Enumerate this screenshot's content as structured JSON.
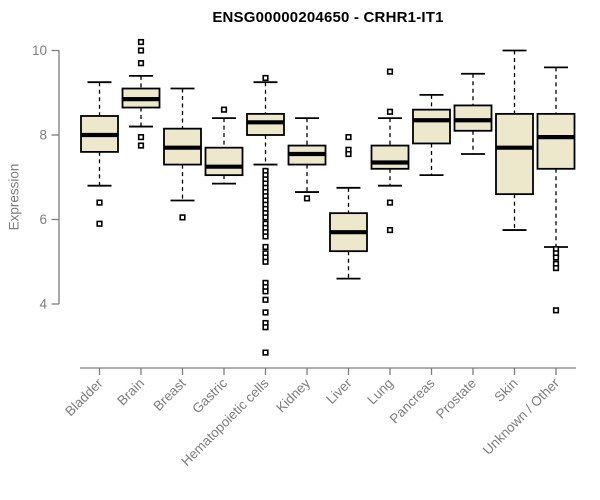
{
  "chart_data": {
    "type": "boxplot",
    "title": "ENSG00000204650 - CRHR1-IT1",
    "ylabel": "Expression",
    "xlabel": "",
    "yticks": [
      4,
      6,
      8,
      10
    ],
    "ylim": [
      4,
      10
    ],
    "grid": false,
    "legend": null,
    "box_fill": "#EDE8CC",
    "box_border": "#000000",
    "axis_color": "#7d7d7d",
    "categories": [
      "Bladder",
      "Brain",
      "Breast",
      "Gastric",
      "Hematopoietic cells",
      "Kidney",
      "Liver",
      "Lung",
      "Pancreas",
      "Prostate",
      "Skin",
      "Unknown / Other"
    ],
    "series": [
      {
        "name": "Bladder",
        "low": 6.8,
        "q1": 7.6,
        "median": 8.0,
        "q3": 8.45,
        "high": 9.25,
        "outliers": [
          6.4,
          5.9
        ]
      },
      {
        "name": "Brain",
        "low": 8.2,
        "q1": 8.65,
        "median": 8.85,
        "q3": 9.1,
        "high": 9.4,
        "outliers": [
          10.2,
          10.0,
          9.7,
          7.95,
          7.75
        ]
      },
      {
        "name": "Breast",
        "low": 6.45,
        "q1": 7.3,
        "median": 7.7,
        "q3": 8.15,
        "high": 9.1,
        "outliers": [
          6.05
        ]
      },
      {
        "name": "Gastric",
        "low": 6.85,
        "q1": 7.05,
        "median": 7.25,
        "q3": 7.7,
        "high": 8.4,
        "outliers": [
          8.6
        ]
      },
      {
        "name": "Hematopoietic cells",
        "low": 7.3,
        "q1": 8.0,
        "median": 8.3,
        "q3": 8.5,
        "high": 9.25,
        "outliers": [
          9.35,
          7.15,
          7.05,
          6.95,
          6.85,
          6.75,
          6.65,
          6.55,
          6.45,
          6.35,
          6.25,
          6.15,
          6.05,
          5.9,
          5.8,
          5.7,
          5.6,
          5.35,
          5.2,
          5.1,
          5.0,
          4.5,
          4.4,
          4.3,
          4.1,
          3.8,
          3.55,
          3.45,
          2.85
        ]
      },
      {
        "name": "Kidney",
        "low": 6.65,
        "q1": 7.3,
        "median": 7.55,
        "q3": 7.75,
        "high": 8.4,
        "outliers": [
          6.5
        ]
      },
      {
        "name": "Liver",
        "low": 4.6,
        "q1": 5.25,
        "median": 5.7,
        "q3": 6.15,
        "high": 6.75,
        "outliers": [
          7.95,
          7.65,
          7.55
        ]
      },
      {
        "name": "Lung",
        "low": 6.8,
        "q1": 7.2,
        "median": 7.35,
        "q3": 7.75,
        "high": 8.4,
        "outliers": [
          9.5,
          8.55,
          6.4,
          5.75
        ]
      },
      {
        "name": "Pancreas",
        "low": 7.05,
        "q1": 7.8,
        "median": 8.35,
        "q3": 8.6,
        "high": 8.95,
        "outliers": []
      },
      {
        "name": "Prostate",
        "low": 7.55,
        "q1": 8.1,
        "median": 8.35,
        "q3": 8.7,
        "high": 9.45,
        "outliers": []
      },
      {
        "name": "Skin",
        "low": 5.75,
        "q1": 6.6,
        "median": 7.7,
        "q3": 8.5,
        "high": 10.0,
        "outliers": []
      },
      {
        "name": "Unknown / Other",
        "low": 5.35,
        "q1": 7.2,
        "median": 7.95,
        "q3": 8.5,
        "high": 9.6,
        "outliers": [
          5.3,
          5.2,
          5.1,
          4.95,
          4.85,
          3.85
        ]
      }
    ]
  }
}
